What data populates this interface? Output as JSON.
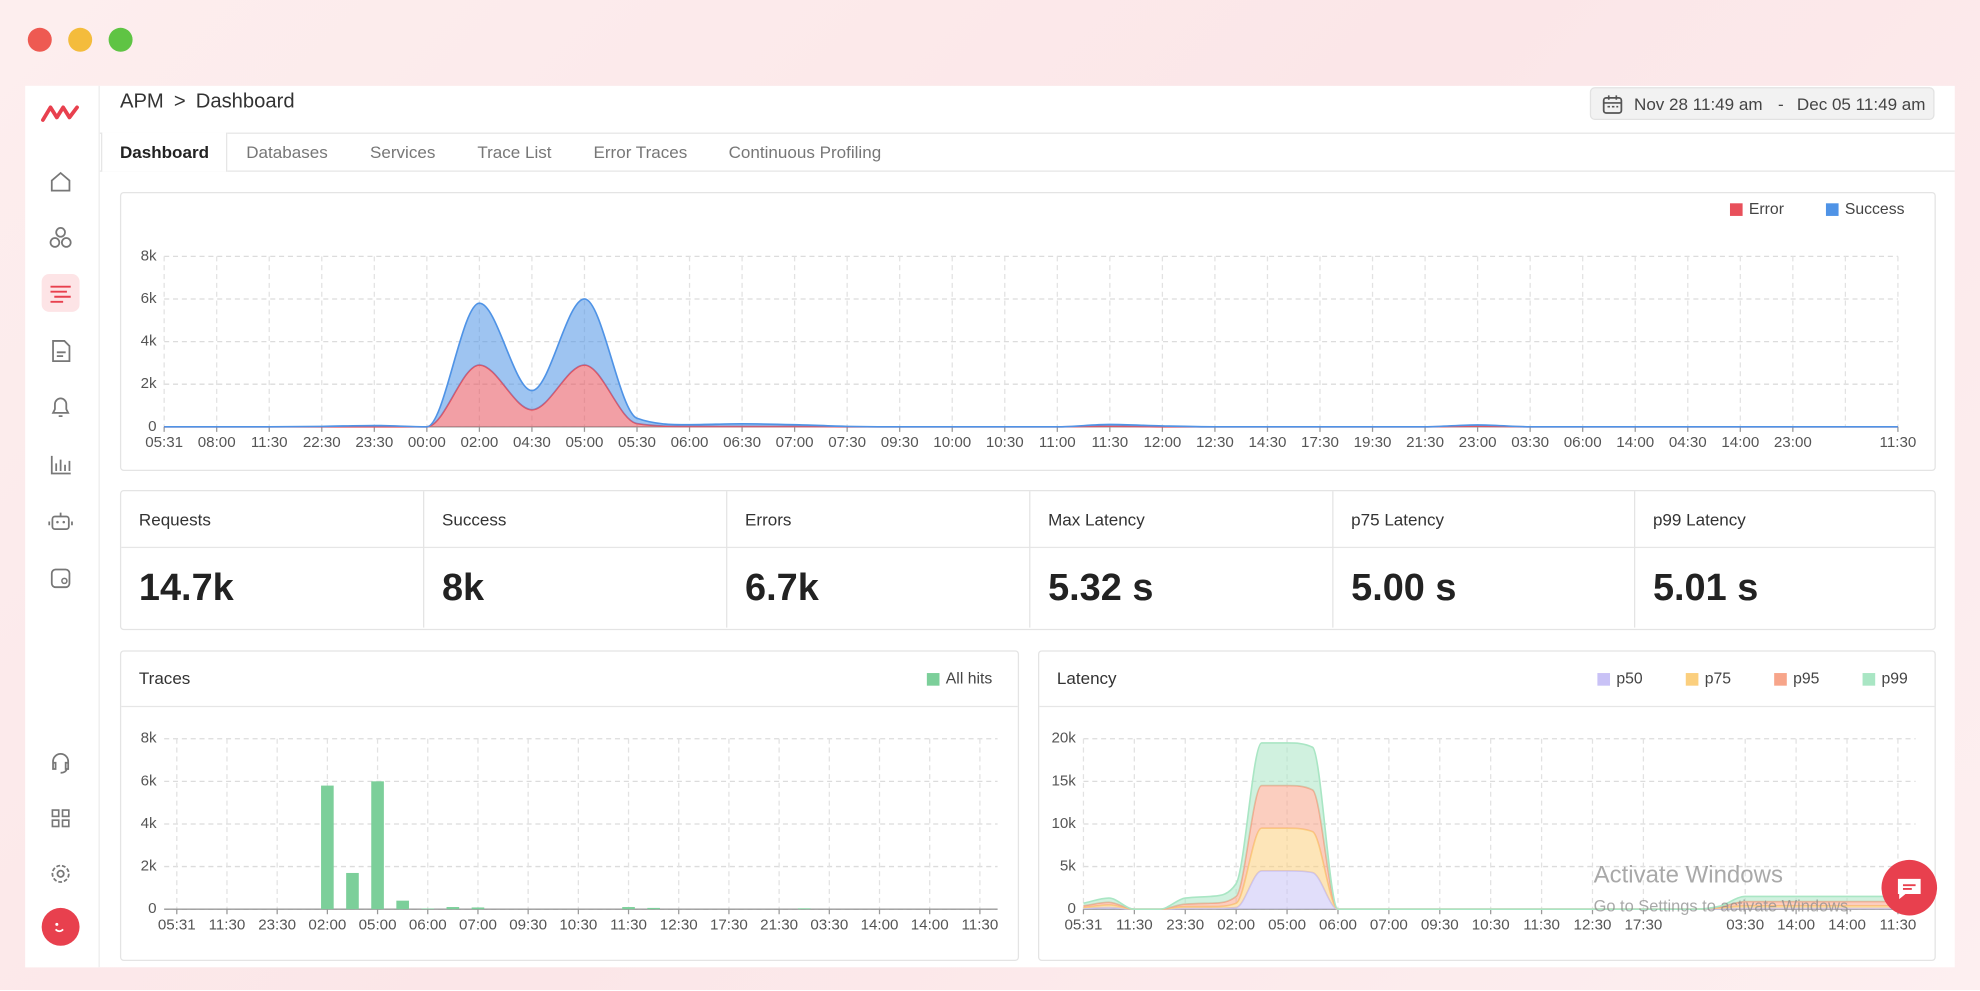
{
  "breadcrumb": {
    "root": "APM",
    "separator": ">",
    "current": "Dashboard"
  },
  "date_range": {
    "start": "Nov 28 11:49 am",
    "separator": "-",
    "end": "Dec 05 11:49 am"
  },
  "tabs": [
    "Dashboard",
    "Databases",
    "Services",
    "Trace List",
    "Error Traces",
    "Continuous Profiling"
  ],
  "stats": [
    {
      "label": "Requests",
      "value": "14.7k"
    },
    {
      "label": "Success",
      "value": "8k"
    },
    {
      "label": "Errors",
      "value": "6.7k"
    },
    {
      "label": "Max Latency",
      "value": "5.32 s"
    },
    {
      "label": "p75 Latency",
      "value": "5.00 s"
    },
    {
      "label": "p99 Latency",
      "value": "5.01 s"
    }
  ],
  "watermark": {
    "title": "Activate Windows",
    "subtitle": "Go to Settings to activate Windows."
  },
  "chart_data": [
    {
      "type": "area",
      "stacked": true,
      "grid": true,
      "categories": [
        "05:31",
        "08:00",
        "11:30",
        "22:30",
        "23:30",
        "00:00",
        "02:00",
        "04:30",
        "05:00",
        "05:30",
        "06:00",
        "06:30",
        "07:00",
        "07:30",
        "09:30",
        "10:00",
        "10:30",
        "11:00",
        "11:30",
        "12:00",
        "12:30",
        "14:30",
        "17:30",
        "19:30",
        "21:30",
        "23:00",
        "03:30",
        "06:00",
        "14:00",
        "04:30",
        "14:00",
        "23:00",
        null,
        "11:30"
      ],
      "series": [
        {
          "name": "Error",
          "color": "#e8505b",
          "values": [
            0,
            0,
            0,
            0,
            0,
            0,
            2900,
            800,
            2900,
            150,
            20,
            20,
            20,
            0,
            0,
            0,
            0,
            0,
            30,
            0,
            0,
            0,
            0,
            0,
            0,
            30,
            0,
            0,
            0,
            0,
            0,
            0,
            0,
            0
          ]
        },
        {
          "name": "Success",
          "color": "#4f93e6",
          "values": [
            0,
            0,
            0,
            20,
            60,
            0,
            2900,
            900,
            3100,
            250,
            80,
            120,
            80,
            20,
            0,
            0,
            0,
            0,
            80,
            40,
            0,
            0,
            0,
            0,
            0,
            60,
            0,
            0,
            0,
            0,
            0,
            0,
            0,
            0
          ]
        }
      ],
      "ylim": [
        0,
        8000
      ],
      "yticks": [
        0,
        {
          "value": 2000,
          "label": "2k"
        },
        {
          "value": 4000,
          "label": "4k"
        },
        {
          "value": 6000,
          "label": "6k"
        },
        {
          "value": 8000,
          "label": "8k"
        }
      ]
    },
    {
      "type": "bar",
      "title": "Traces",
      "grid": true,
      "categories": [
        "05:31",
        null,
        "11:30",
        null,
        "23:30",
        null,
        "02:00",
        null,
        "05:00",
        null,
        "06:00",
        null,
        "07:00",
        null,
        "09:30",
        null,
        "10:30",
        null,
        "11:30",
        null,
        "12:30",
        null,
        "17:30",
        null,
        "21:30",
        null,
        "03:30",
        null,
        "14:00",
        null,
        "14:00",
        null,
        "11:30"
      ],
      "series": [
        {
          "name": "All hits",
          "color": "#7ccf9a",
          "values": [
            0,
            0,
            0,
            0,
            0,
            0,
            5800,
            1700,
            6000,
            400,
            30,
            100,
            80,
            0,
            0,
            0,
            0,
            0,
            100,
            60,
            0,
            0,
            0,
            0,
            0,
            40,
            0,
            0,
            0,
            0,
            0,
            0,
            0
          ]
        }
      ],
      "ylim": [
        0,
        8000
      ],
      "yticks": [
        0,
        {
          "value": 2000,
          "label": "2k"
        },
        {
          "value": 4000,
          "label": "4k"
        },
        {
          "value": 6000,
          "label": "6k"
        },
        {
          "value": 8000,
          "label": "8k"
        }
      ]
    },
    {
      "type": "area",
      "stacked": true,
      "title": "Latency",
      "grid": true,
      "categories": [
        "05:31",
        null,
        "11:30",
        null,
        "23:30",
        null,
        "02:00",
        null,
        "05:00",
        null,
        "06:00",
        null,
        "07:00",
        null,
        "09:30",
        null,
        "10:30",
        null,
        "11:30",
        null,
        "12:30",
        null,
        "17:30",
        null,
        null,
        null,
        "03:30",
        null,
        "14:00",
        null,
        "14:00",
        null,
        "11:30"
      ],
      "series": [
        {
          "name": "p50",
          "color": "#c9c2f6",
          "values": [
            100,
            200,
            0,
            0,
            100,
            100,
            200,
            4500,
            4500,
            4300,
            0,
            0,
            0,
            0,
            0,
            0,
            0,
            0,
            0,
            0,
            0,
            0,
            0,
            0,
            0,
            50,
            100,
            100,
            100,
            100,
            100,
            100,
            100
          ]
        },
        {
          "name": "p75",
          "color": "#fbcf7e",
          "values": [
            100,
            300,
            0,
            0,
            200,
            200,
            500,
            5000,
            5000,
            4800,
            0,
            0,
            0,
            0,
            0,
            0,
            0,
            0,
            0,
            0,
            0,
            0,
            0,
            0,
            0,
            100,
            300,
            300,
            300,
            300,
            300,
            300,
            300
          ]
        },
        {
          "name": "p95",
          "color": "#f7a58a",
          "values": [
            200,
            300,
            0,
            0,
            300,
            400,
            800,
            5000,
            5000,
            4900,
            0,
            0,
            0,
            0,
            0,
            0,
            0,
            0,
            0,
            0,
            0,
            0,
            0,
            0,
            0,
            100,
            500,
            500,
            500,
            500,
            500,
            500,
            500
          ]
        },
        {
          "name": "p99",
          "color": "#a9e6c4",
          "values": [
            300,
            500,
            0,
            0,
            700,
            800,
            1500,
            5000,
            5000,
            5000,
            0,
            0,
            0,
            0,
            0,
            0,
            0,
            0,
            0,
            0,
            0,
            0,
            0,
            0,
            0,
            100,
            600,
            600,
            600,
            600,
            600,
            600,
            600
          ]
        }
      ],
      "ylim": [
        0,
        20000
      ],
      "yticks": [
        0,
        {
          "value": 5000,
          "label": "5k"
        },
        {
          "value": 10000,
          "label": "10k"
        },
        {
          "value": 15000,
          "label": "15k"
        },
        {
          "value": 20000,
          "label": "20k"
        }
      ]
    }
  ]
}
